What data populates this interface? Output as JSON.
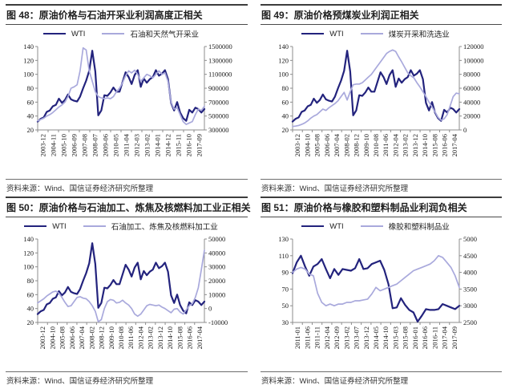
{
  "colors": {
    "wti": "#23237d",
    "secondary": "#a9a9dc",
    "axis": "#8c8c8c"
  },
  "chart_data": [
    {
      "type": "line",
      "title": "图 48：原油价格与石油开采业利润高度正相关",
      "source": "资料来源：Wind、国信证券经济研究所整理",
      "legend_position": "top-center",
      "grid": "off",
      "x_labels": [
        "2003-12",
        "2004-11",
        "2005-10",
        "2006-09",
        "2007-08",
        "2008-07",
        "2009-06",
        "2010-05",
        "2011-04",
        "2012-03",
        "2013-02",
        "2014-01",
        "2014-12",
        "2015-11",
        "2016-10",
        "2017-09"
      ],
      "left_axis": {
        "min": 20,
        "max": 140,
        "ticks": [
          140,
          120,
          100,
          80,
          60,
          40,
          20
        ]
      },
      "right_axis": {
        "min": 300000,
        "max": 1500000,
        "ticks": [
          1500000,
          1300000,
          1100000,
          900000,
          700000,
          500000,
          300000
        ]
      },
      "series": [
        {
          "name": "WTI",
          "axis": "left",
          "color": "#23237d",
          "values": [
            32,
            36,
            38,
            46,
            48,
            54,
            56,
            65,
            59,
            63,
            71,
            64,
            62,
            61,
            68,
            80,
            91,
            105,
            134,
            104,
            41,
            48,
            70,
            69,
            74,
            81,
            75,
            75,
            89,
            103,
            96,
            86,
            99,
            106,
            82,
            94,
            88,
            93,
            96,
            106,
            98,
            101,
            106,
            93,
            59,
            48,
            60,
            45,
            37,
            33,
            49,
            45,
            52,
            50,
            45,
            50
          ]
        },
        {
          "name": "石油和天然气开采业",
          "axis": "right",
          "color": "#a9a9dc",
          "values": [
            430000,
            450000,
            470000,
            500000,
            520000,
            550000,
            590000,
            630000,
            660000,
            700000,
            780000,
            900000,
            920000,
            950000,
            1150000,
            1480000,
            1450000,
            1150000,
            1000000,
            850000,
            780000,
            760000,
            750000,
            760000,
            750000,
            780000,
            850000,
            900000,
            980000,
            1080000,
            1150000,
            1120000,
            1160000,
            1100000,
            1000000,
            1050000,
            1100000,
            1080000,
            1050000,
            1100000,
            1150000,
            1100000,
            1120000,
            1000000,
            700000,
            600000,
            620000,
            520000,
            420000,
            380000,
            400000,
            420000,
            520000,
            600000,
            580000,
            640000
          ]
        }
      ]
    },
    {
      "type": "line",
      "title": "图 49：原油价格预煤炭业利润正相关",
      "source": "资料来源：Wind、国信证券经济研究所整理",
      "legend_position": "top-center",
      "grid": "off",
      "x_labels": [
        "2003-12",
        "2004-10",
        "2005-08",
        "2006-06",
        "2007-04",
        "2008-02",
        "2008-12",
        "2009-10",
        "2010-08",
        "2011-06",
        "2012-04",
        "2013-02",
        "2013-12",
        "2014-10",
        "2015-08",
        "2016-06",
        "2017-04"
      ],
      "left_axis": {
        "min": 20,
        "max": 140,
        "ticks": [
          140,
          120,
          100,
          80,
          60,
          40,
          20
        ]
      },
      "right_axis": {
        "min": 0,
        "max": 120000,
        "ticks": [
          120000,
          100000,
          80000,
          60000,
          40000,
          20000,
          0
        ]
      },
      "series": [
        {
          "name": "WTI",
          "axis": "left",
          "color": "#23237d",
          "values": [
            32,
            36,
            38,
            46,
            48,
            54,
            56,
            65,
            59,
            63,
            71,
            64,
            62,
            61,
            68,
            80,
            91,
            105,
            134,
            104,
            41,
            48,
            70,
            69,
            74,
            81,
            75,
            75,
            89,
            103,
            96,
            86,
            99,
            106,
            82,
            94,
            88,
            93,
            96,
            106,
            98,
            101,
            106,
            93,
            59,
            48,
            60,
            45,
            37,
            33,
            49,
            45,
            52,
            50,
            45,
            50
          ]
        },
        {
          "name": "煤炭开采和洗选业",
          "axis": "right",
          "color": "#a9a9dc",
          "values": [
            5000,
            5500,
            6500,
            8000,
            10000,
            13000,
            17000,
            20000,
            22000,
            26000,
            30000,
            28000,
            32000,
            35000,
            38000,
            42000,
            48000,
            54000,
            43000,
            55000,
            65000,
            66000,
            66000,
            68000,
            72000,
            76000,
            80000,
            86000,
            92000,
            98000,
            104000,
            110000,
            113000,
            115000,
            113000,
            105000,
            98000,
            90000,
            82000,
            78000,
            75000,
            68000,
            62000,
            55000,
            48000,
            40000,
            33000,
            26000,
            18000,
            14000,
            16000,
            22000,
            35000,
            48000,
            53000,
            52000
          ]
        }
      ]
    },
    {
      "type": "line",
      "title": "图 50：原油价格与石油加工、炼焦及核燃料加工业正相关",
      "source": "资料来源：Wind、国信证券经济研究所整理",
      "legend_position": "top-center",
      "grid": "off",
      "x_labels": [
        "2003-12",
        "2004-10",
        "2005-08",
        "2006-06",
        "2007-04",
        "2008-02",
        "2008-12",
        "2009-10",
        "2010-08",
        "2011-06",
        "2012-04",
        "2013-02",
        "2013-12",
        "2014-10",
        "2015-08",
        "2016-06",
        "2017-04"
      ],
      "left_axis": {
        "min": 20,
        "max": 140,
        "ticks": [
          140,
          120,
          100,
          80,
          60,
          40,
          20
        ]
      },
      "right_axis": {
        "min": -10000,
        "max": 50000,
        "ticks": [
          50000,
          40000,
          30000,
          20000,
          10000,
          0,
          -10000
        ]
      },
      "series": [
        {
          "name": "WTI",
          "axis": "left",
          "color": "#23237d",
          "values": [
            32,
            36,
            38,
            46,
            48,
            54,
            56,
            65,
            59,
            63,
            71,
            64,
            62,
            61,
            68,
            80,
            91,
            105,
            134,
            104,
            41,
            48,
            70,
            69,
            74,
            81,
            75,
            75,
            89,
            103,
            96,
            86,
            99,
            106,
            82,
            94,
            88,
            93,
            96,
            106,
            98,
            101,
            106,
            93,
            59,
            48,
            60,
            45,
            37,
            33,
            49,
            45,
            52,
            50,
            45,
            50
          ]
        },
        {
          "name": "石油加工、炼焦及核燃料加工业",
          "axis": "right",
          "color": "#a9a9dc",
          "values": [
            4000,
            5500,
            7000,
            9000,
            10500,
            12000,
            12500,
            11000,
            8000,
            4500,
            1500,
            2000,
            5000,
            8000,
            8500,
            7500,
            7000,
            5000,
            2000,
            -2000,
            -9500,
            -8000,
            0,
            5000,
            6500,
            6000,
            4000,
            4500,
            6000,
            4000,
            2500,
            0,
            -4000,
            -5500,
            -4000,
            -1000,
            2000,
            3000,
            2500,
            2000,
            2500,
            1000,
            0,
            -1500,
            -3000,
            -500,
            0,
            -2500,
            -4000,
            -1000,
            2000,
            3500,
            8000,
            15000,
            28000,
            42000
          ]
        }
      ]
    },
    {
      "type": "line",
      "title": "图 51：原油价格与橡胶和塑料制品业利润负相关",
      "source": "资料来源：Wind、国信证券经济研究所整理",
      "legend_position": "top-center",
      "grid": "off",
      "x_labels": [
        "2011-01",
        "2011-06",
        "2011-11",
        "2012-04",
        "2012-09",
        "2013-02",
        "2013-07",
        "2013-12",
        "2014-05",
        "2014-10",
        "2015-03",
        "2015-08",
        "2016-01",
        "2016-06",
        "2016-11",
        "2017-04",
        "2017-09"
      ],
      "left_axis": {
        "min": 30,
        "max": 130,
        "ticks": [
          130,
          110,
          90,
          70,
          50,
          30
        ]
      },
      "right_axis": {
        "min": 2500,
        "max": 5000,
        "ticks": [
          5000,
          4500,
          4000,
          3500,
          3000,
          2500
        ]
      },
      "series": [
        {
          "name": "WTI",
          "axis": "left",
          "color": "#23237d",
          "values": [
            89,
            102,
            110,
            97,
            86,
            97,
            100,
            106,
            94,
            83,
            94,
            87,
            94,
            93,
            92,
            95,
            106,
            94,
            95,
            100,
            102,
            104,
            93,
            76,
            47,
            48,
            59,
            51,
            45,
            42,
            31,
            38,
            46,
            45,
            45,
            46,
            52,
            50,
            48,
            46,
            50
          ]
        },
        {
          "name": "橡胶和塑料制品业",
          "axis": "right",
          "color": "#a9a9dc",
          "values": [
            4000,
            4100,
            4150,
            4100,
            3950,
            3900,
            3375,
            3100,
            3000,
            3050,
            3000,
            3050,
            3050,
            3100,
            3100,
            3150,
            3150,
            3175,
            3200,
            3350,
            3550,
            3450,
            3500,
            3550,
            3600,
            3650,
            3750,
            3850,
            3950,
            4050,
            4100,
            4150,
            4200,
            4250,
            4350,
            4500,
            4450,
            4300,
            4150,
            3900,
            3550
          ]
        }
      ]
    }
  ]
}
